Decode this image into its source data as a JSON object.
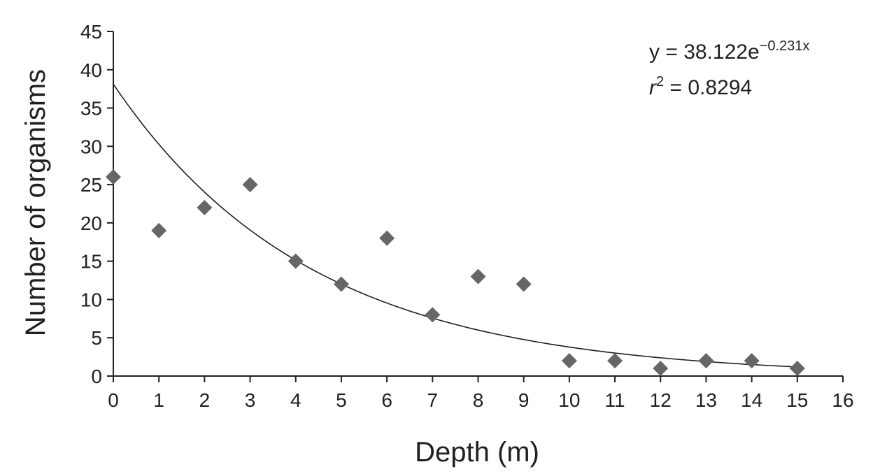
{
  "chart_data": {
    "type": "scatter",
    "xlabel": "Depth (m)",
    "ylabel": "Number of organisms",
    "xlim": [
      0,
      16
    ],
    "ylim": [
      0,
      45
    ],
    "x_ticks": [
      0,
      1,
      2,
      3,
      4,
      5,
      6,
      7,
      8,
      9,
      10,
      11,
      12,
      13,
      14,
      15,
      16
    ],
    "y_ticks": [
      0,
      5,
      10,
      15,
      20,
      25,
      30,
      35,
      40,
      45
    ],
    "grid": false,
    "series": [
      {
        "marker": "diamond",
        "color": "#666666",
        "points": [
          {
            "x": 0,
            "y": 26
          },
          {
            "x": 1,
            "y": 19
          },
          {
            "x": 2,
            "y": 22
          },
          {
            "x": 3,
            "y": 25
          },
          {
            "x": 4,
            "y": 15
          },
          {
            "x": 5,
            "y": 12
          },
          {
            "x": 6,
            "y": 18
          },
          {
            "x": 7,
            "y": 8
          },
          {
            "x": 8,
            "y": 13
          },
          {
            "x": 9,
            "y": 12
          },
          {
            "x": 10,
            "y": 2
          },
          {
            "x": 11,
            "y": 2
          },
          {
            "x": 12,
            "y": 1
          },
          {
            "x": 13,
            "y": 2
          },
          {
            "x": 14,
            "y": 2
          },
          {
            "x": 15,
            "y": 1
          }
        ]
      }
    ],
    "trendline": {
      "type": "exponential",
      "a": 38.122,
      "b": -0.231,
      "x_range": [
        0,
        15
      ],
      "color": "#231f20"
    },
    "annotation": {
      "equation_prefix": "y = 38.122e",
      "equation_exponent": "−0.231x",
      "r2_var": "r",
      "r2_exp": "2",
      "r2_value": " = 0.8294"
    }
  }
}
